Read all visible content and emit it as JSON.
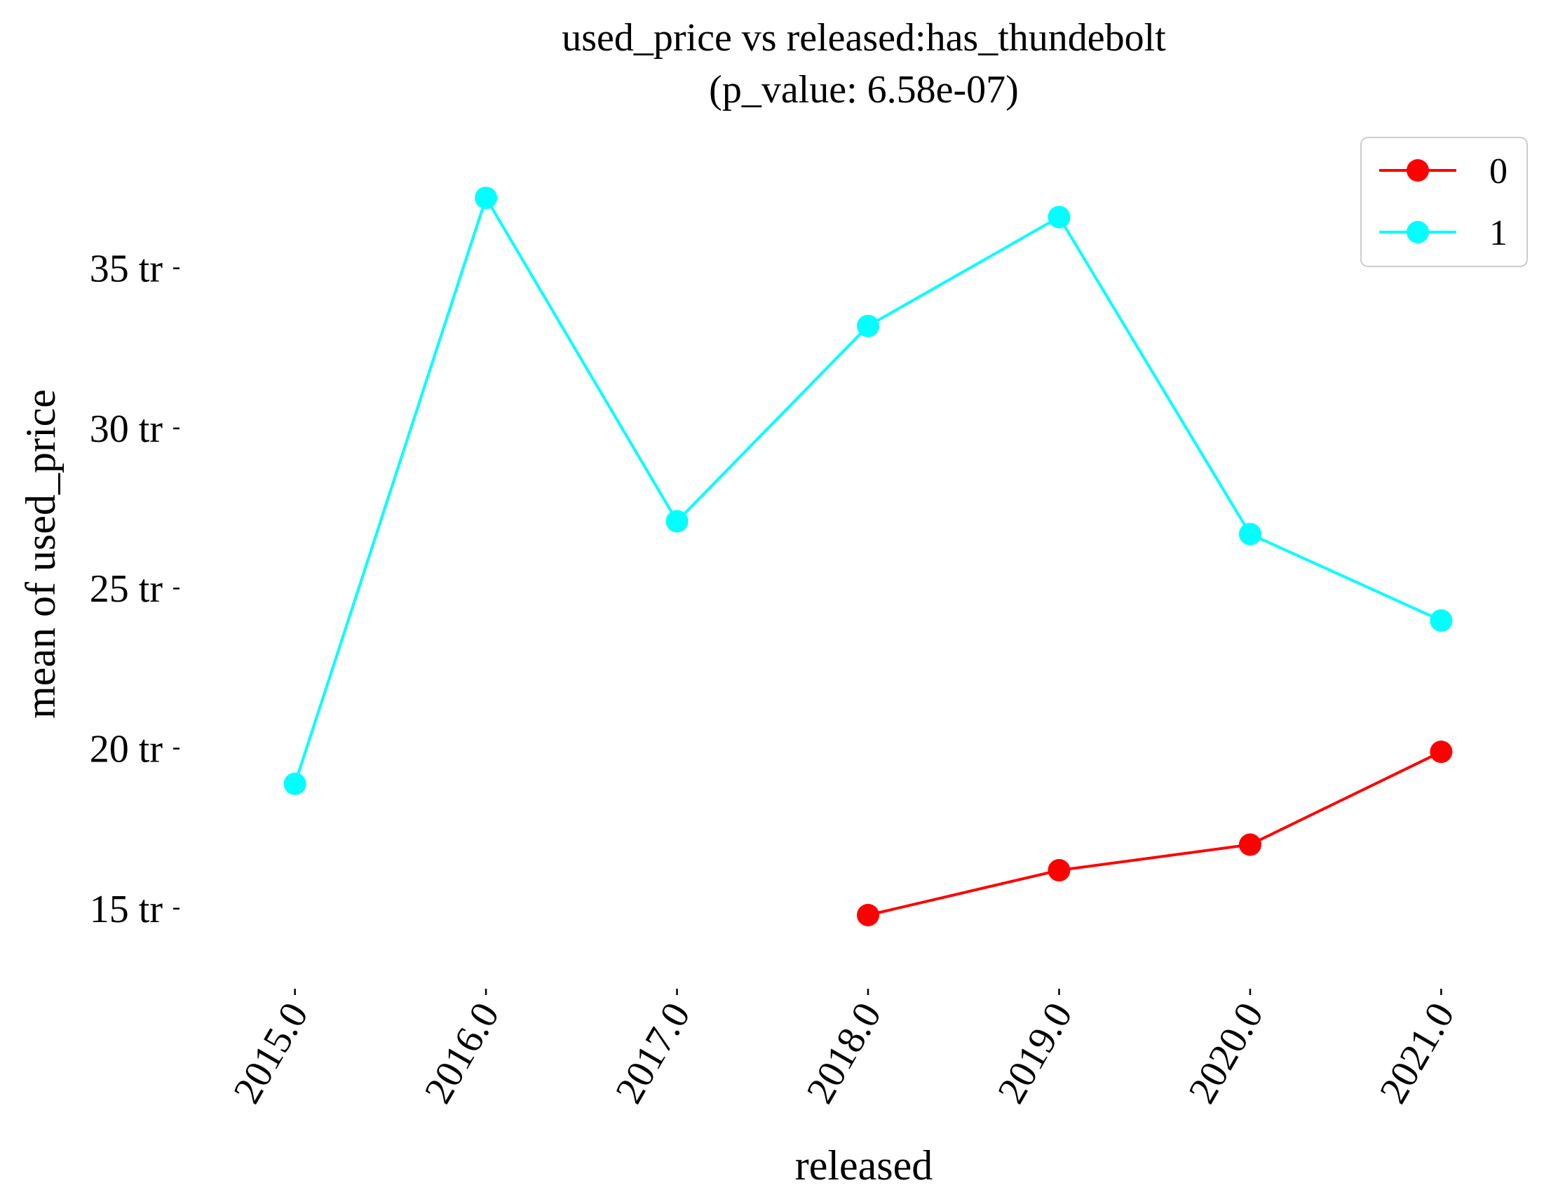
{
  "chart_data": {
    "type": "line",
    "title": "used_price vs released:has_thundebolt",
    "subtitle": "(p_value: 6.58e-07)",
    "xlabel": "released",
    "ylabel": "mean of used_price",
    "x": [
      2015,
      2016,
      2017,
      2018,
      2019,
      2020,
      2021
    ],
    "x_tick_labels": [
      "2015.0",
      "2016.0",
      "2017.0",
      "2018.0",
      "2019.0",
      "2020.0",
      "2021.0"
    ],
    "y_ticks": [
      15,
      20,
      25,
      30,
      35
    ],
    "y_tick_labels": [
      "15 tr",
      "20 tr",
      "25 tr",
      "30 tr",
      "35 tr"
    ],
    "y_unit": "tr",
    "xlim": [
      2014.95,
      2021.05
    ],
    "ylim": [
      12.5,
      39.0
    ],
    "grid": false,
    "legend_position": "top-right",
    "series": [
      {
        "name": "0",
        "color": "#ff0000",
        "x": [
          2018,
          2019,
          2020,
          2021
        ],
        "values": [
          14.8,
          16.2,
          17.0,
          19.9
        ]
      },
      {
        "name": "1",
        "color": "#00ffff",
        "x": [
          2015,
          2016,
          2017,
          2018,
          2019,
          2020,
          2021
        ],
        "values": [
          18.9,
          37.2,
          27.1,
          33.2,
          36.6,
          26.7,
          24.0
        ]
      }
    ]
  }
}
